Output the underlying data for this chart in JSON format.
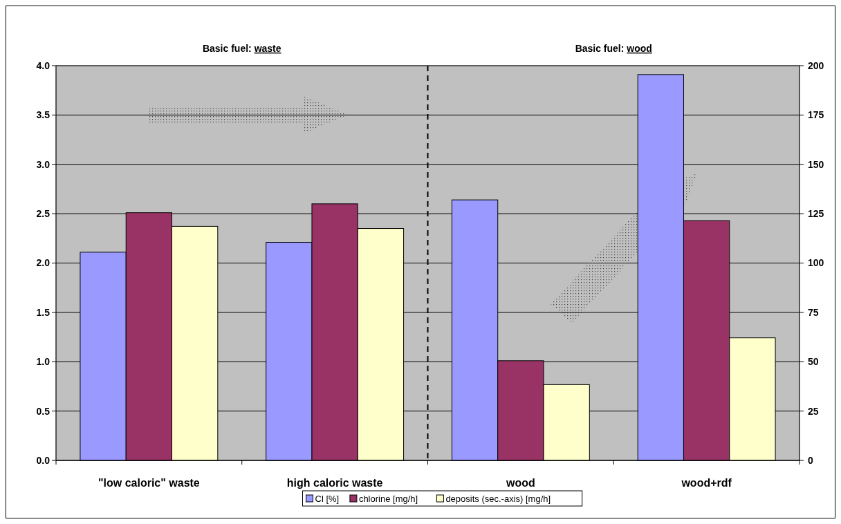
{
  "chart_data": {
    "type": "bar",
    "categories": [
      "\"low caloric\" waste",
      "high caloric waste",
      "wood",
      "wood+rdf"
    ],
    "series": [
      {
        "name": "Cl [%]",
        "color": "#9999ff",
        "values": [
          2.11,
          2.21,
          2.64,
          3.91
        ]
      },
      {
        "name": "chlorine [mg/h]",
        "color": "#993366",
        "values": [
          2.51,
          2.6,
          1.01,
          2.43
        ]
      },
      {
        "name": "deposits (sec.-axis) [mg/h]",
        "color": "#ffffcc",
        "axis": "y2",
        "values": [
          118.6,
          117.5,
          38.4,
          62.1
        ]
      }
    ],
    "ylim": [
      0,
      4
    ],
    "yticks": [
      {
        "value": 0,
        "label": "0.0"
      },
      {
        "value": 0.5,
        "label": "0.5"
      },
      {
        "value": 1,
        "label": "1.0"
      },
      {
        "value": 1.5,
        "label": "1.5"
      },
      {
        "value": 2,
        "label": "2.0"
      },
      {
        "value": 2.5,
        "label": "2.5"
      },
      {
        "value": 3,
        "label": "3.0"
      },
      {
        "value": 3.5,
        "label": "3.5"
      },
      {
        "value": 4,
        "label": "4.0"
      }
    ],
    "y2lim": [
      0,
      200
    ],
    "y2ticks": [
      0,
      25,
      50,
      75,
      100,
      125,
      150,
      175,
      200
    ],
    "grid": "y",
    "legend": "bottom",
    "annotations": [
      "Basic fuel: waste",
      "Basic fuel: wood"
    ]
  }
}
